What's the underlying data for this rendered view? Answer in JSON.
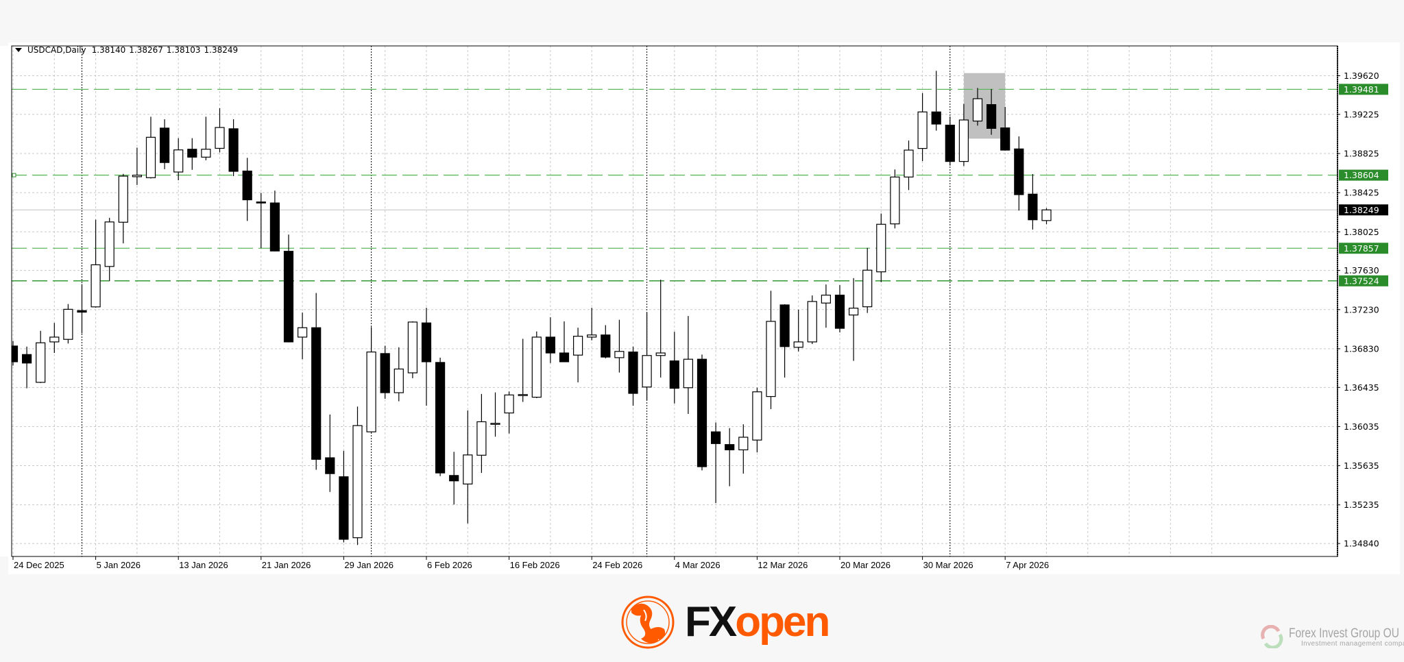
{
  "header": {
    "symbol": "USDCAD,Daily",
    "open": "1.38140",
    "high": "1.38267",
    "low": "1.38103",
    "close": "1.38249"
  },
  "chart_data": {
    "type": "candlestick",
    "title": "USDCAD,Daily",
    "columns": [
      "date",
      "open",
      "high",
      "low",
      "close"
    ],
    "candles": [
      [
        "2025-12-24",
        1.36858,
        1.3691,
        1.36658,
        1.36697
      ],
      [
        "2025-12-26",
        1.36771,
        1.36852,
        1.36426,
        1.36684
      ],
      [
        "2025-12-29",
        1.36487,
        1.37013,
        1.3648,
        1.36891
      ],
      [
        "2025-12-30",
        1.369,
        1.37094,
        1.36787,
        1.36949
      ],
      [
        "2025-12-31",
        1.36926,
        1.37287,
        1.36884,
        1.37233
      ],
      [
        "2026-01-02",
        1.3722,
        1.37491,
        1.36987,
        1.37204
      ],
      [
        "2026-01-05",
        1.37258,
        1.38149,
        1.3725,
        1.37688
      ],
      [
        "2026-01-06",
        1.37671,
        1.38168,
        1.3752,
        1.38126
      ],
      [
        "2026-01-07",
        1.38123,
        1.38617,
        1.37907,
        1.38594
      ],
      [
        "2026-01-08",
        1.38588,
        1.38885,
        1.38504,
        1.38604
      ],
      [
        "2026-01-09",
        1.38578,
        1.39201,
        1.3857,
        1.38991
      ],
      [
        "2026-01-12",
        1.39085,
        1.39175,
        1.38665,
        1.38733
      ],
      [
        "2026-01-13",
        1.38636,
        1.38982,
        1.38552,
        1.38862
      ],
      [
        "2026-01-14",
        1.38869,
        1.38982,
        1.38659,
        1.38788
      ],
      [
        "2026-01-15",
        1.38788,
        1.39201,
        1.38756,
        1.38869
      ],
      [
        "2026-01-16",
        1.38878,
        1.39288,
        1.38836,
        1.39091
      ],
      [
        "2026-01-19",
        1.39078,
        1.39175,
        1.38594,
        1.38643
      ],
      [
        "2026-01-20",
        1.38646,
        1.38781,
        1.38136,
        1.38352
      ],
      [
        "2026-01-21",
        1.3833,
        1.38423,
        1.37859,
        1.3832
      ],
      [
        "2026-01-22",
        1.3832,
        1.38446,
        1.37825,
        1.37829
      ],
      [
        "2026-01-23",
        1.37826,
        1.37997,
        1.36895,
        1.369
      ],
      [
        "2026-01-26",
        1.36949,
        1.372,
        1.36723,
        1.37045
      ],
      [
        "2026-01-27",
        1.37045,
        1.374,
        1.35593,
        1.357
      ],
      [
        "2026-01-28",
        1.35716,
        1.36158,
        1.35367,
        1.35554
      ],
      [
        "2026-01-29",
        1.35522,
        1.35787,
        1.34851,
        1.34883
      ],
      [
        "2026-01-30",
        1.34899,
        1.36239,
        1.34825,
        1.36045
      ],
      [
        "2026-02-02",
        1.35981,
        1.37052,
        1.35975,
        1.36797
      ],
      [
        "2026-02-03",
        1.36781,
        1.36861,
        1.36319,
        1.36381
      ],
      [
        "2026-02-04",
        1.36381,
        1.36845,
        1.36293,
        1.36623
      ],
      [
        "2026-02-05",
        1.36584,
        1.3711,
        1.36529,
        1.37103
      ],
      [
        "2026-02-06",
        1.37094,
        1.37249,
        1.36248,
        1.36697
      ],
      [
        "2026-02-09",
        1.3669,
        1.36739,
        1.35529,
        1.35561
      ],
      [
        "2026-02-10",
        1.35535,
        1.35777,
        1.35238,
        1.3548
      ],
      [
        "2026-02-11",
        1.35448,
        1.362,
        1.35045,
        1.35745
      ],
      [
        "2026-02-12",
        1.35742,
        1.36368,
        1.35561,
        1.36084
      ],
      [
        "2026-02-13",
        1.36064,
        1.36384,
        1.35932,
        1.36068
      ],
      [
        "2026-02-16",
        1.36174,
        1.36393,
        1.35964,
        1.36358
      ],
      [
        "2026-02-17",
        1.36358,
        1.36932,
        1.36287,
        1.36362
      ],
      [
        "2026-02-18",
        1.36335,
        1.37007,
        1.36326,
        1.36949
      ],
      [
        "2026-02-19",
        1.36949,
        1.37152,
        1.36684,
        1.36787
      ],
      [
        "2026-02-20",
        1.36787,
        1.3711,
        1.36695,
        1.36697
      ],
      [
        "2026-02-23",
        1.36765,
        1.37045,
        1.36487,
        1.36958
      ],
      [
        "2026-02-24",
        1.36949,
        1.37249,
        1.36916,
        1.36971
      ],
      [
        "2026-02-25",
        1.36971,
        1.37071,
        1.36732,
        1.36745
      ],
      [
        "2026-02-26",
        1.36739,
        1.37126,
        1.36587,
        1.36803
      ],
      [
        "2026-02-27",
        1.36797,
        1.36852,
        1.36248,
        1.36374
      ],
      [
        "2026-03-02",
        1.36439,
        1.372,
        1.36303,
        1.36761
      ],
      [
        "2026-03-03",
        1.36761,
        1.37536,
        1.36536,
        1.36787
      ],
      [
        "2026-03-04",
        1.36706,
        1.37003,
        1.36271,
        1.36426
      ],
      [
        "2026-03-05",
        1.36432,
        1.37165,
        1.36164,
        1.36723
      ],
      [
        "2026-03-06",
        1.36723,
        1.36771,
        1.35587,
        1.35625
      ],
      [
        "2026-03-09",
        1.35981,
        1.36077,
        1.35254,
        1.35861
      ],
      [
        "2026-03-10",
        1.35851,
        1.36019,
        1.35425,
        1.35797
      ],
      [
        "2026-03-11",
        1.35797,
        1.36058,
        1.35554,
        1.35926
      ],
      [
        "2026-03-12",
        1.35897,
        1.36432,
        1.35771,
        1.3639
      ],
      [
        "2026-03-13",
        1.36342,
        1.37423,
        1.36213,
        1.3711
      ],
      [
        "2026-03-16",
        1.37278,
        1.37285,
        1.36536,
        1.36852
      ],
      [
        "2026-03-17",
        1.36845,
        1.37229,
        1.36803,
        1.369
      ],
      [
        "2026-03-18",
        1.369,
        1.37375,
        1.36878,
        1.37313
      ],
      [
        "2026-03-19",
        1.37297,
        1.37487,
        1.37045,
        1.37378
      ],
      [
        "2026-03-20",
        1.37378,
        1.37481,
        1.36997,
        1.37039
      ],
      [
        "2026-03-23",
        1.37175,
        1.37552,
        1.36706,
        1.37245
      ],
      [
        "2026-03-24",
        1.37259,
        1.37861,
        1.37196,
        1.37633
      ],
      [
        "2026-03-25",
        1.37616,
        1.38212,
        1.37511,
        1.38102
      ],
      [
        "2026-03-26",
        1.38106,
        1.38662,
        1.3806,
        1.38585
      ],
      [
        "2026-03-27",
        1.38585,
        1.38958,
        1.38452,
        1.3886
      ],
      [
        "2026-03-30",
        1.38877,
        1.39442,
        1.38748,
        1.3925
      ],
      [
        "2026-03-31",
        1.3925,
        1.3967,
        1.39059,
        1.39126
      ],
      [
        "2026-04-01",
        1.39115,
        1.39203,
        1.38702,
        1.38744
      ],
      [
        "2026-04-02",
        1.38744,
        1.39332,
        1.38697,
        1.39168
      ],
      [
        "2026-04-03",
        1.39157,
        1.39495,
        1.3911,
        1.39385
      ],
      [
        "2026-04-06",
        1.39325,
        1.39484,
        1.39017,
        1.39082
      ],
      [
        "2026-04-07",
        1.39087,
        1.39301,
        1.38855,
        1.3886
      ],
      [
        "2026-04-08",
        1.38872,
        1.39,
        1.38242,
        1.38405
      ],
      [
        "2026-04-09",
        1.3841,
        1.38615,
        1.38048,
        1.38148
      ],
      [
        "2026-04-10",
        1.3814,
        1.38267,
        1.38103,
        1.38249
      ]
    ],
    "ylim": [
      1.3478,
      1.3991
    ],
    "y_ticks": [
      "1.39620",
      "1.39225",
      "1.38825",
      "1.38425",
      "1.38025",
      "1.37630",
      "1.37230",
      "1.36830",
      "1.36435",
      "1.36035",
      "1.35635",
      "1.35235",
      "1.34840"
    ],
    "x_ticks": [
      {
        "date": "2025-12-24",
        "label": "24 Dec 2025"
      },
      {
        "date": "2026-01-05",
        "label": "5 Jan 2026"
      },
      {
        "date": "2026-01-13",
        "label": "13 Jan 2026"
      },
      {
        "date": "2026-01-21",
        "label": "21 Jan 2026"
      },
      {
        "date": "2026-01-29",
        "label": "29 Jan 2026"
      },
      {
        "date": "2026-02-06",
        "label": "6 Feb 2026"
      },
      {
        "date": "2026-02-16",
        "label": "16 Feb 2026"
      },
      {
        "date": "2026-02-24",
        "label": "24 Feb 2026"
      },
      {
        "date": "2026-03-04",
        "label": "4 Mar 2026"
      },
      {
        "date": "2026-03-12",
        "label": "12 Mar 2026"
      },
      {
        "date": "2026-03-20",
        "label": "20 Mar 2026"
      },
      {
        "date": "2026-03-30",
        "label": "30 Mar 2026"
      },
      {
        "date": "2026-04-07",
        "label": "7 Apr 2026"
      }
    ],
    "period_separators": [
      "2026-01-02",
      "2026-02-02",
      "2026-03-02",
      "2026-04-01"
    ],
    "horizontal_levels": [
      {
        "price": "1.39481",
        "color": "#5cb85c"
      },
      {
        "price": "1.38604",
        "color": "#5cb85c"
      },
      {
        "price": "1.37857",
        "color": "#5cb85c"
      },
      {
        "price": "1.37524",
        "color": "#1f8f1f"
      }
    ],
    "level_label_color": "#2a8c2a",
    "current_price": {
      "price": "1.38249",
      "color": "#000000"
    },
    "highlight_box": {
      "from": "2026-04-02",
      "to": "2026-04-07",
      "top": 1.39647,
      "bottom": 1.38977,
      "color": "#c0c0c0"
    },
    "bull_color": "#ffffff",
    "bear_color": "#000000",
    "grid": true
  },
  "brand": {
    "fx": "FX",
    "open": "open",
    "accent": "#ff5a00"
  },
  "watermark": {
    "name": "Forex Invest Group OU",
    "tagline": "Investment management company"
  }
}
